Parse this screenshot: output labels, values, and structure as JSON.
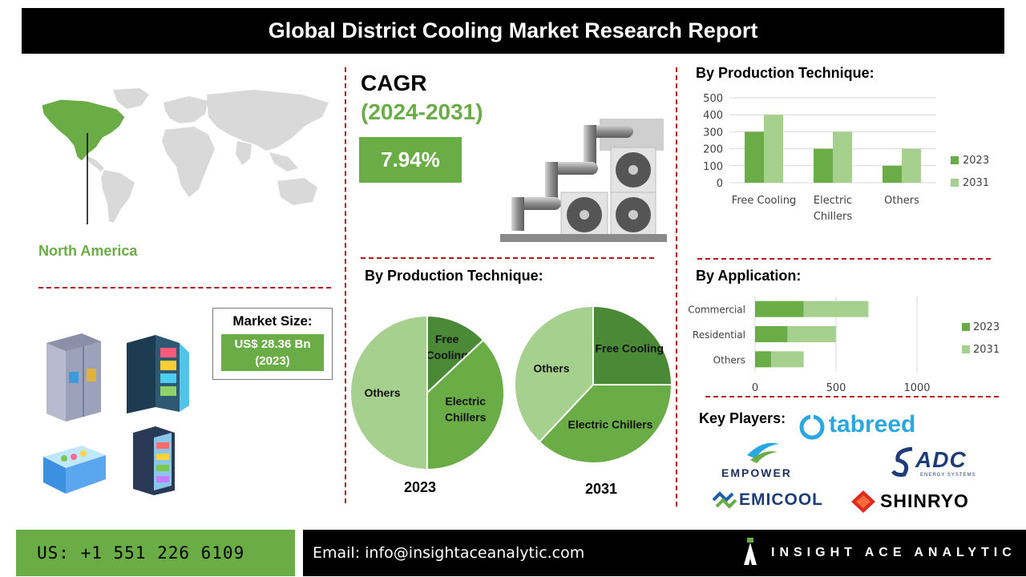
{
  "title": "Global District Cooling Market Research Report",
  "map": {
    "region_label": "North America",
    "highlight_color": "#6aac45"
  },
  "cagr": {
    "label": "CAGR",
    "period": "(2024-2031)",
    "value": "7.94%"
  },
  "market_size": {
    "label": "Market Size:",
    "value": "US$ 28.36 Bn",
    "year": "(2023)"
  },
  "colors": {
    "green_dark": "#6aac45",
    "green_light": "#a6d08d",
    "green_pie_dark": "#4a8a36",
    "divider_red": "#b3161b"
  },
  "bar_chart": {
    "title": "By Production Technique:",
    "chart_data": {
      "type": "bar",
      "categories": [
        "Free Cooling",
        "Electric Chillers",
        "Others"
      ],
      "category_lines": [
        [
          "Free Cooling"
        ],
        [
          "Electric",
          "Chillers"
        ],
        [
          "Others"
        ]
      ],
      "series": [
        {
          "name": "2023",
          "values": [
            300,
            200,
            100
          ],
          "color": "#6aac45"
        },
        {
          "name": "2031",
          "values": [
            400,
            300,
            200
          ],
          "color": "#a6d08d"
        }
      ],
      "yticks": [
        0,
        100,
        200,
        300,
        400,
        500
      ],
      "ylim": [
        0,
        500
      ],
      "grid": true,
      "legend": "right"
    }
  },
  "pie_charts": {
    "title": "By Production Technique:",
    "chart_data": [
      {
        "type": "pie",
        "title": "2023",
        "slices": [
          {
            "label": "Free Cooling",
            "lines": [
              "Free",
              "Cooling"
            ],
            "value": 13,
            "color": "#4a8a36"
          },
          {
            "label": "Electric Chillers",
            "lines": [
              "Electric",
              "Chillers"
            ],
            "value": 37,
            "color": "#6aac45"
          },
          {
            "label": "Others",
            "lines": [
              "Others"
            ],
            "value": 50,
            "color": "#a6d08d"
          }
        ]
      },
      {
        "type": "pie",
        "title": "2031",
        "slices": [
          {
            "label": "Free Cooling",
            "lines": [
              "Free Cooling"
            ],
            "value": 25,
            "color": "#4a8a36"
          },
          {
            "label": "Electric Chillers",
            "lines": [
              "Electric Chillers"
            ],
            "value": 37,
            "color": "#6aac45"
          },
          {
            "label": "Others",
            "lines": [
              "Others"
            ],
            "value": 38,
            "color": "#a6d08d"
          }
        ]
      }
    ]
  },
  "hbar_chart": {
    "title": "By Application:",
    "chart_data": {
      "type": "bar",
      "orientation": "horizontal",
      "stacked": true,
      "categories": [
        "Commercial",
        "Residential",
        "Others"
      ],
      "series": [
        {
          "name": "2023",
          "values": [
            300,
            200,
            100
          ],
          "color": "#6aac45"
        },
        {
          "name": "2031",
          "values": [
            400,
            300,
            200
          ],
          "color": "#a6d08d"
        }
      ],
      "xticks": [
        0,
        500,
        1000
      ],
      "xlim": [
        0,
        1000
      ],
      "grid": true,
      "legend": "right"
    }
  },
  "key_players": {
    "title": "Key Players:",
    "logos": [
      "tabreed",
      "EMPOWER",
      "ADC",
      "ENERGY SYSTEMS",
      "EMICOOL",
      "SHINRYO"
    ]
  },
  "footer": {
    "phone": "US: +1 551 226 6109",
    "email": "Email: info@insightaceanalytic.com",
    "brand": "INSIGHT ACE ANALYTIC"
  }
}
